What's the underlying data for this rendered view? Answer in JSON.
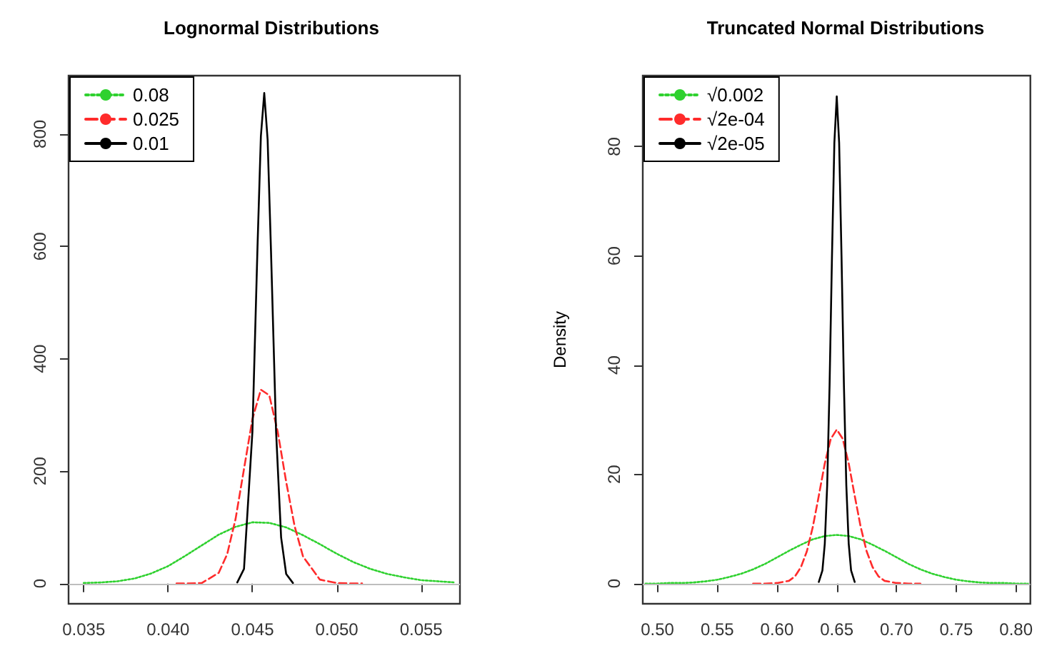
{
  "chart_data": [
    {
      "type": "line",
      "title": "Lognormal Distributions",
      "xlim": [
        0.0341,
        0.0573
      ],
      "ylim": [
        -36,
        904
      ],
      "xticks": [
        0.035,
        {
          "value": 0.04,
          "label": "0.040"
        },
        0.045,
        {
          "value": 0.05,
          "label": "0.050"
        },
        0.055
      ],
      "yticks": [
        0,
        200,
        400,
        600,
        800
      ],
      "grid": false,
      "legend": "top left",
      "ref_lines": [
        {
          "axis": "y",
          "value": 0,
          "color": "#bebebe"
        }
      ],
      "series": [
        {
          "name": "0.08",
          "color": "#2fd12f",
          "line_style": "dotted",
          "x": [
            0.035,
            0.036,
            0.037,
            0.038,
            0.039,
            0.04,
            0.041,
            0.042,
            0.043,
            0.044,
            0.045,
            0.046,
            0.047,
            0.048,
            0.049,
            0.05,
            0.051,
            0.052,
            0.053,
            0.054,
            0.055,
            0.056,
            0.057
          ],
          "values": [
            1,
            2,
            4,
            9,
            18,
            31,
            49,
            68,
            87,
            101,
            109,
            108,
            100,
            86,
            70,
            53,
            38,
            26,
            17,
            11,
            6,
            4,
            2
          ]
        },
        {
          "name": "0.025",
          "color": "#ff2b2b",
          "line_style": "dashed",
          "x": [
            0.0405,
            0.041,
            0.042,
            0.043,
            0.0435,
            0.044,
            0.0445,
            0.045,
            0.0455,
            0.046,
            0.0465,
            0.047,
            0.0475,
            0.048,
            0.049,
            0.05,
            0.051,
            0.0515
          ],
          "values": [
            0,
            0,
            1,
            19,
            52,
            115,
            204,
            293,
            345,
            335,
            270,
            181,
            102,
            48,
            7,
            1,
            0,
            0
          ]
        },
        {
          "name": "0.01",
          "color": "#000000",
          "line_style": "solid",
          "x": [
            0.0441,
            0.0445,
            0.045,
            0.0453,
            0.0455,
            0.0457,
            0.0459,
            0.0461,
            0.0464,
            0.0467,
            0.047,
            0.0474
          ],
          "values": [
            2,
            26,
            271,
            599,
            796,
            873,
            790,
            592,
            271,
            82,
            17,
            1
          ]
        }
      ]
    },
    {
      "type": "line",
      "title": "Truncated Normal Distributions",
      "ylabel": "Density",
      "xlim": [
        0.4877,
        0.812
      ],
      "ylim": [
        -3.7,
        93
      ],
      "xticks": [
        {
          "value": 0.5,
          "label": "0.50"
        },
        0.55,
        {
          "value": 0.6,
          "label": "0.60"
        },
        0.65,
        {
          "value": 0.7,
          "label": "0.70"
        },
        0.75,
        {
          "value": 0.8,
          "label": "0.80"
        }
      ],
      "yticks": [
        0,
        20,
        40,
        60,
        80
      ],
      "grid": false,
      "legend": "top left",
      "ref_lines": [
        {
          "axis": "y",
          "value": 0,
          "color": "#bebebe"
        }
      ],
      "series": [
        {
          "name": "√0.002",
          "color": "#2fd12f",
          "line_style": "dotted",
          "x": [
            0.49,
            0.5,
            0.51,
            0.52,
            0.53,
            0.54,
            0.55,
            0.56,
            0.57,
            0.58,
            0.59,
            0.6,
            0.61,
            0.62,
            0.63,
            0.64,
            0.65,
            0.66,
            0.67,
            0.68,
            0.69,
            0.7,
            0.71,
            0.72,
            0.73,
            0.74,
            0.75,
            0.76,
            0.77,
            0.78,
            0.79,
            0.8,
            0.81
          ],
          "values": [
            0,
            0,
            0.1,
            0.1,
            0.2,
            0.4,
            0.7,
            1.2,
            1.8,
            2.6,
            3.6,
            4.8,
            6,
            7.1,
            8.1,
            8.7,
            8.9,
            8.7,
            8.1,
            7.1,
            6,
            4.8,
            3.6,
            2.6,
            1.8,
            1.2,
            0.7,
            0.4,
            0.2,
            0.1,
            0.1,
            0,
            0
          ]
        },
        {
          "name": "√2e-04",
          "color": "#ff2b2b",
          "line_style": "dashed",
          "x": [
            0.58,
            0.59,
            0.6,
            0.61,
            0.615,
            0.62,
            0.625,
            0.63,
            0.635,
            0.64,
            0.645,
            0.65,
            0.655,
            0.66,
            0.665,
            0.67,
            0.675,
            0.68,
            0.685,
            0.69,
            0.7,
            0.71,
            0.72
          ],
          "values": [
            0,
            0,
            0.1,
            0.5,
            1.3,
            3,
            5.9,
            10.4,
            16.1,
            22,
            26.5,
            28.2,
            26.5,
            22,
            16.1,
            10.4,
            5.9,
            3,
            1.3,
            0.5,
            0.1,
            0,
            0
          ]
        },
        {
          "name": "√2e-05",
          "color": "#000000",
          "line_style": "solid",
          "x": [
            0.635,
            0.638,
            0.64,
            0.642,
            0.644,
            0.646,
            0.648,
            0.65,
            0.652,
            0.654,
            0.656,
            0.658,
            0.66,
            0.662,
            0.665
          ],
          "values": [
            0.3,
            2.4,
            7.3,
            18,
            36.3,
            59.8,
            80.7,
            89.2,
            80.7,
            59.8,
            36.3,
            18,
            7.3,
            2.4,
            0.3
          ]
        }
      ]
    }
  ]
}
